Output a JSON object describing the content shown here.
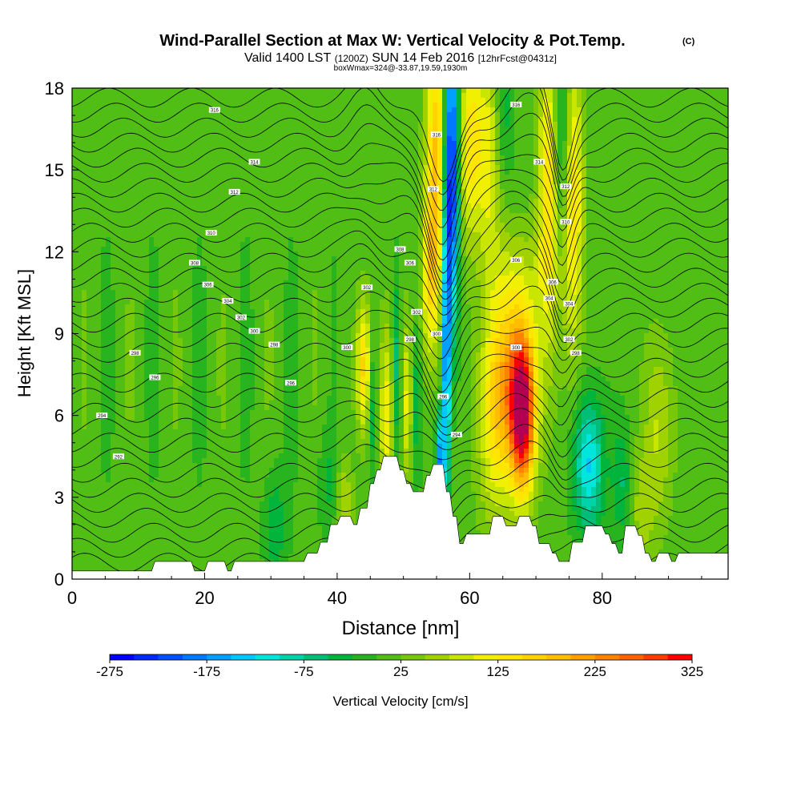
{
  "chart_data": {
    "type": "heatmap",
    "title": "Wind-Parallel Section at Max W: Vertical Velocity & Pot.Temp.",
    "title_mark": "(C)",
    "subtitle_parts": [
      "Valid 1400 LST",
      "(1200Z)",
      "SUN 14 Feb 2016",
      "[12hrFcst@0431z]"
    ],
    "subtitle2": "boxWmax=324@-33.87,19.59,1930m",
    "xlabel": "Distance [nm]",
    "ylabel": "Height [Kft MSL]",
    "xlim": [
      0,
      99
    ],
    "ylim": [
      0,
      18
    ],
    "x_ticks": [
      0,
      20,
      40,
      60,
      80
    ],
    "x_tick_labels": [
      "0",
      "20",
      "40",
      "60",
      "80"
    ],
    "y_ticks": [
      0,
      3,
      6,
      9,
      12,
      15,
      18
    ],
    "y_tick_labels": [
      "0",
      "3",
      "6",
      "9",
      "12",
      "15",
      "18"
    ],
    "colorbar": {
      "label": "Vertical Velocity [cm/s]",
      "min": -275,
      "max": 325,
      "step": 25,
      "tick_values": [
        -275,
        -175,
        -75,
        25,
        125,
        225,
        325
      ],
      "tick_labels": [
        "-275",
        "-175",
        "-75",
        "25",
        "125",
        "225",
        "325"
      ],
      "colors": [
        "#0000ff",
        "#0028ff",
        "#0050ff",
        "#0078ff",
        "#00a0ff",
        "#00c8ff",
        "#00e6dc",
        "#00d2aa",
        "#00be78",
        "#00b43c",
        "#28b41e",
        "#50be14",
        "#78c80a",
        "#a0d200",
        "#c8e600",
        "#f0f000",
        "#ffe600",
        "#ffd200",
        "#ffbe00",
        "#ffa000",
        "#ff8200",
        "#ff6400",
        "#ff3c00",
        "#ff0000",
        "#dc0028",
        "#b40050"
      ]
    },
    "terrain_profile_kft": [
      [
        0,
        0.3
      ],
      [
        12,
        0.3
      ],
      [
        12.5,
        0.65
      ],
      [
        18,
        0.65
      ],
      [
        18.5,
        0.3
      ],
      [
        20,
        0.3
      ],
      [
        20.5,
        0.65
      ],
      [
        23,
        0.65
      ],
      [
        23.5,
        0.3
      ],
      [
        24,
        0.3
      ],
      [
        24.5,
        0.65
      ],
      [
        35,
        0.65
      ],
      [
        35.5,
        0.95
      ],
      [
        37,
        0.95
      ],
      [
        37.5,
        1.35
      ],
      [
        38.5,
        1.35
      ],
      [
        39,
        2.0
      ],
      [
        40,
        2.0
      ],
      [
        40.5,
        2.3
      ],
      [
        42,
        2.3
      ],
      [
        42.5,
        2.0
      ],
      [
        43,
        2.0
      ],
      [
        43.5,
        2.6
      ],
      [
        44.5,
        2.6
      ],
      [
        45,
        3.5
      ],
      [
        45.5,
        3.5
      ],
      [
        46,
        4.0
      ],
      [
        46.5,
        4.0
      ],
      [
        47,
        4.5
      ],
      [
        49,
        4.5
      ],
      [
        49.5,
        4.0
      ],
      [
        50,
        4.0
      ],
      [
        50.5,
        3.5
      ],
      [
        51,
        3.5
      ],
      [
        51.5,
        3.2
      ],
      [
        53,
        3.2
      ],
      [
        53.5,
        3.8
      ],
      [
        54,
        3.8
      ],
      [
        54.5,
        4.2
      ],
      [
        56,
        4.2
      ],
      [
        56.5,
        3.2
      ],
      [
        57,
        3.2
      ],
      [
        57.5,
        2.3
      ],
      [
        58,
        2.3
      ],
      [
        58.5,
        1.3
      ],
      [
        59,
        1.3
      ],
      [
        59.5,
        1.65
      ],
      [
        63,
        1.65
      ],
      [
        63.5,
        2.3
      ],
      [
        65,
        2.3
      ],
      [
        65.5,
        1.95
      ],
      [
        67,
        1.95
      ],
      [
        67.5,
        2.3
      ],
      [
        69,
        2.3
      ],
      [
        69.5,
        1.95
      ],
      [
        70,
        1.95
      ],
      [
        70.5,
        1.3
      ],
      [
        72,
        1.3
      ],
      [
        72.5,
        0.95
      ],
      [
        73,
        0.95
      ],
      [
        73.5,
        0.65
      ],
      [
        75,
        0.65
      ],
      [
        75.5,
        1.35
      ],
      [
        77,
        1.35
      ],
      [
        77.5,
        1.95
      ],
      [
        80,
        1.95
      ],
      [
        80.5,
        1.65
      ],
      [
        81,
        1.65
      ],
      [
        81.5,
        1.3
      ],
      [
        82,
        1.3
      ],
      [
        82.5,
        0.95
      ],
      [
        83,
        0.95
      ],
      [
        83.5,
        1.95
      ],
      [
        85,
        1.95
      ],
      [
        85.5,
        1.6
      ],
      [
        86,
        1.6
      ],
      [
        86.5,
        0.95
      ],
      [
        87,
        0.95
      ],
      [
        87.5,
        0.65
      ],
      [
        88,
        0.65
      ],
      [
        88.5,
        0.95
      ],
      [
        90,
        0.95
      ],
      [
        90.5,
        0.65
      ],
      [
        91,
        0.65
      ],
      [
        91.5,
        0.95
      ],
      [
        99,
        0.95
      ]
    ],
    "isentrope_labels": [
      {
        "x": 21.5,
        "y": 17.2,
        "text": "316"
      },
      {
        "x": 27.5,
        "y": 15.3,
        "text": "314"
      },
      {
        "x": 24.5,
        "y": 14.2,
        "text": "312"
      },
      {
        "x": 21,
        "y": 12.7,
        "text": "310"
      },
      {
        "x": 18.5,
        "y": 11.6,
        "text": "308"
      },
      {
        "x": 20.5,
        "y": 10.8,
        "text": "306"
      },
      {
        "x": 23.5,
        "y": 10.2,
        "text": "304"
      },
      {
        "x": 25.5,
        "y": 9.6,
        "text": "302"
      },
      {
        "x": 27.5,
        "y": 9.1,
        "text": "300"
      },
      {
        "x": 30.5,
        "y": 8.6,
        "text": "298"
      },
      {
        "x": 9.5,
        "y": 8.3,
        "text": "298"
      },
      {
        "x": 12.5,
        "y": 7.4,
        "text": "296"
      },
      {
        "x": 33,
        "y": 7.2,
        "text": "296"
      },
      {
        "x": 4.5,
        "y": 6.0,
        "text": "294"
      },
      {
        "x": 7,
        "y": 4.5,
        "text": "292"
      },
      {
        "x": 41.5,
        "y": 8.5,
        "text": "300"
      },
      {
        "x": 44.5,
        "y": 10.7,
        "text": "302"
      },
      {
        "x": 51,
        "y": 11.6,
        "text": "306"
      },
      {
        "x": 49.5,
        "y": 12.1,
        "text": "308"
      },
      {
        "x": 54.5,
        "y": 14.3,
        "text": "312"
      },
      {
        "x": 55,
        "y": 16.3,
        "text": "316"
      },
      {
        "x": 52,
        "y": 9.8,
        "text": "302"
      },
      {
        "x": 51,
        "y": 8.8,
        "text": "298"
      },
      {
        "x": 55,
        "y": 9.0,
        "text": "300"
      },
      {
        "x": 56,
        "y": 6.7,
        "text": "296"
      },
      {
        "x": 58,
        "y": 5.3,
        "text": "294"
      },
      {
        "x": 67,
        "y": 8.5,
        "text": "300"
      },
      {
        "x": 67,
        "y": 11.7,
        "text": "306"
      },
      {
        "x": 67,
        "y": 17.4,
        "text": "316"
      },
      {
        "x": 70.5,
        "y": 15.3,
        "text": "314"
      },
      {
        "x": 74.5,
        "y": 14.4,
        "text": "312"
      },
      {
        "x": 74.5,
        "y": 13.1,
        "text": "310"
      },
      {
        "x": 72.5,
        "y": 10.9,
        "text": "306"
      },
      {
        "x": 72,
        "y": 10.3,
        "text": "304"
      },
      {
        "x": 75,
        "y": 10.1,
        "text": "304"
      },
      {
        "x": 75,
        "y": 8.8,
        "text": "302"
      },
      {
        "x": 76,
        "y": 8.3,
        "text": "298"
      }
    ]
  }
}
